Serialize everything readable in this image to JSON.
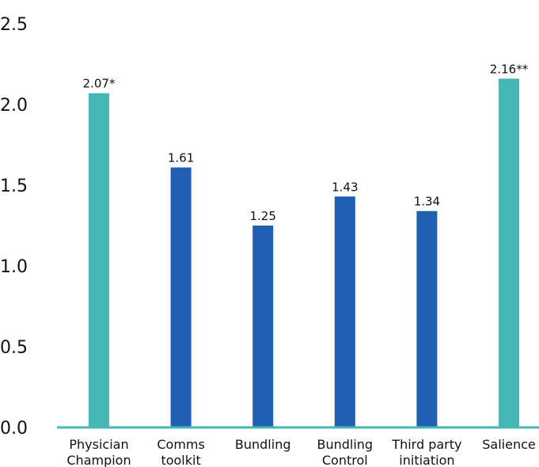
{
  "chart_data": {
    "type": "bar",
    "categories": [
      [
        "Physician",
        "Champion"
      ],
      [
        "Comms",
        "toolkit"
      ],
      [
        "Bundling"
      ],
      [
        "Bundling",
        "Control"
      ],
      [
        "Third party",
        "initiation"
      ],
      [
        "Salience"
      ]
    ],
    "values": [
      2.07,
      1.61,
      1.25,
      1.43,
      1.34,
      2.16
    ],
    "data_labels": [
      "2.07*",
      "1.61",
      "1.25",
      "1.43",
      "1.34",
      "2.16**"
    ],
    "bar_colors": [
      "#45b8b5",
      "#1f5eb0",
      "#1f5eb0",
      "#1f5eb0",
      "#1f5eb0",
      "#45b8b5"
    ],
    "axis_color": "#45b8b5",
    "ylim": [
      0,
      2.5
    ],
    "yticks": [
      "0.0",
      "0.5",
      "1.0",
      "1.5",
      "2.0",
      "2.5"
    ],
    "ytick_values": [
      0,
      0.5,
      1.0,
      1.5,
      2.0,
      2.5
    ],
    "title": "",
    "xlabel": "",
    "ylabel": "",
    "grid": false,
    "legend": "none"
  }
}
